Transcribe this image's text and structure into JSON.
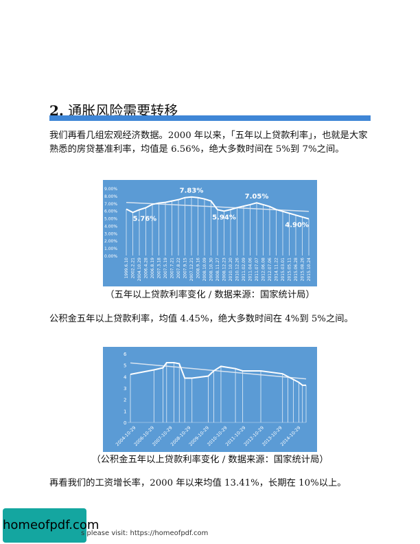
{
  "section": {
    "number": "2.",
    "title": "通胀风险需要转移"
  },
  "paragraphs": {
    "p1": "我们再看几组宏观经济数据。2000 年以来，「五年以上贷款利率」，也就是大家熟悉的房贷基准利率，均值是 6.56%，绝大多数时间在 5%到 7%之间。",
    "p2": "公积金五年以上贷款利率，均值 4.45%，绝大多数时间在 4%到 5%之间。",
    "p3": "再看我们的工资增长率，2000 年以来均值 13.41%，长期在 10%以上。"
  },
  "captions": {
    "c1": "（五年以上贷款利率变化 / 数据来源：国家统计局）",
    "c2": "（公积金五年以上贷款利率变化 / 数据来源：国家统计局）"
  },
  "footer": {
    "logo_text": "homeofpdf.com",
    "text": "s please visit: https://homeofpdf.com"
  },
  "colors": {
    "accent": "#3f86d6",
    "chart_bg": "#5b9bd5",
    "logo_bg": "#14a6a0"
  },
  "chart_data": [
    {
      "type": "area",
      "yticks": [
        "0.00%",
        "1.00%",
        "2.00%",
        "3.00%",
        "4.00%",
        "5.00%",
        "6.00%",
        "7.00%",
        "8.00%",
        "9.00%"
      ],
      "ylim": [
        0,
        9
      ],
      "x": [
        "1999.6.10",
        "2002.2.21",
        "2004.10.29",
        "2006.4.28",
        "2006.8.19",
        "2007.3.18",
        "2007.5.19",
        "2007.7.21",
        "2007.8.22",
        "2007.9.15",
        "2007.12.21",
        "2008.9.16",
        "2008.10.09",
        "2008.10.30",
        "2008.11.27",
        "2008.12.23",
        "2010.10.20",
        "2010.12.26",
        "2011.02.09",
        "2011.04.06",
        "2011.07.07",
        "2012.06.08",
        "2012.07.06",
        "2014.11.22",
        "2015.03.01",
        "2015.05.11",
        "2015.06.28",
        "2015.08.26",
        "2015.10.24"
      ],
      "values": [
        6.21,
        5.76,
        6.12,
        6.39,
        6.84,
        7.02,
        7.11,
        7.29,
        7.47,
        7.74,
        7.83,
        7.74,
        7.56,
        7.29,
        6.12,
        5.94,
        6.14,
        6.4,
        6.6,
        6.8,
        7.05,
        6.8,
        6.55,
        6.15,
        5.9,
        5.65,
        5.4,
        5.15,
        4.9
      ],
      "annotations": [
        {
          "label": "5.76%",
          "index": 1
        },
        {
          "label": "7.83%",
          "index": 10
        },
        {
          "label": "5.94%",
          "index": 15
        },
        {
          "label": "7.05%",
          "index": 20
        },
        {
          "label": "4.90%",
          "index": 28
        }
      ],
      "trend": [
        7.1,
        5.9
      ],
      "grid": false
    },
    {
      "type": "area",
      "yticks": [
        "0",
        "1",
        "2",
        "3",
        "4",
        "5",
        "6"
      ],
      "ylim": [
        0,
        6
      ],
      "xticks": [
        "2004-10-29",
        "2006-10-29",
        "2007-10-29",
        "2008-10-29",
        "2009-10-29",
        "2010-10-29",
        "2011-10-29",
        "2012-10-29",
        "2013-10-29",
        "2014-10-29"
      ],
      "x": [
        0,
        1.3,
        1.8,
        2.0,
        2.4,
        2.7,
        3.0,
        3.4,
        4.3,
        4.6,
        5.0,
        5.8,
        6.2,
        7.2,
        8.4,
        8.7,
        9.0,
        9.3,
        9.5,
        9.7
      ],
      "values": [
        4.2,
        4.59,
        4.77,
        5.22,
        5.22,
        5.13,
        3.87,
        3.87,
        4.05,
        4.5,
        4.9,
        4.7,
        4.5,
        4.5,
        4.25,
        4.0,
        3.75,
        3.5,
        3.25,
        3.25
      ],
      "trend": [
        5.2,
        3.8
      ],
      "grid": false
    }
  ]
}
